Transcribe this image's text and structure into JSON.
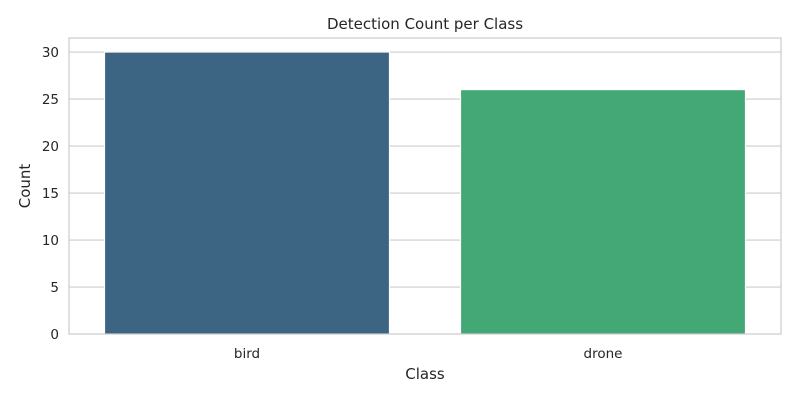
{
  "chart_data": {
    "type": "bar",
    "title": "Detection Count per Class",
    "xlabel": "Class",
    "ylabel": "Count",
    "categories": [
      "bird",
      "drone"
    ],
    "values": [
      30,
      26
    ],
    "colors": [
      "#3c6583",
      "#44a876"
    ],
    "ylim": [
      0,
      31.5
    ],
    "yticks": [
      0,
      5,
      10,
      15,
      20,
      25,
      30
    ],
    "grid": true,
    "grid_axis": "y",
    "legend": "none"
  }
}
